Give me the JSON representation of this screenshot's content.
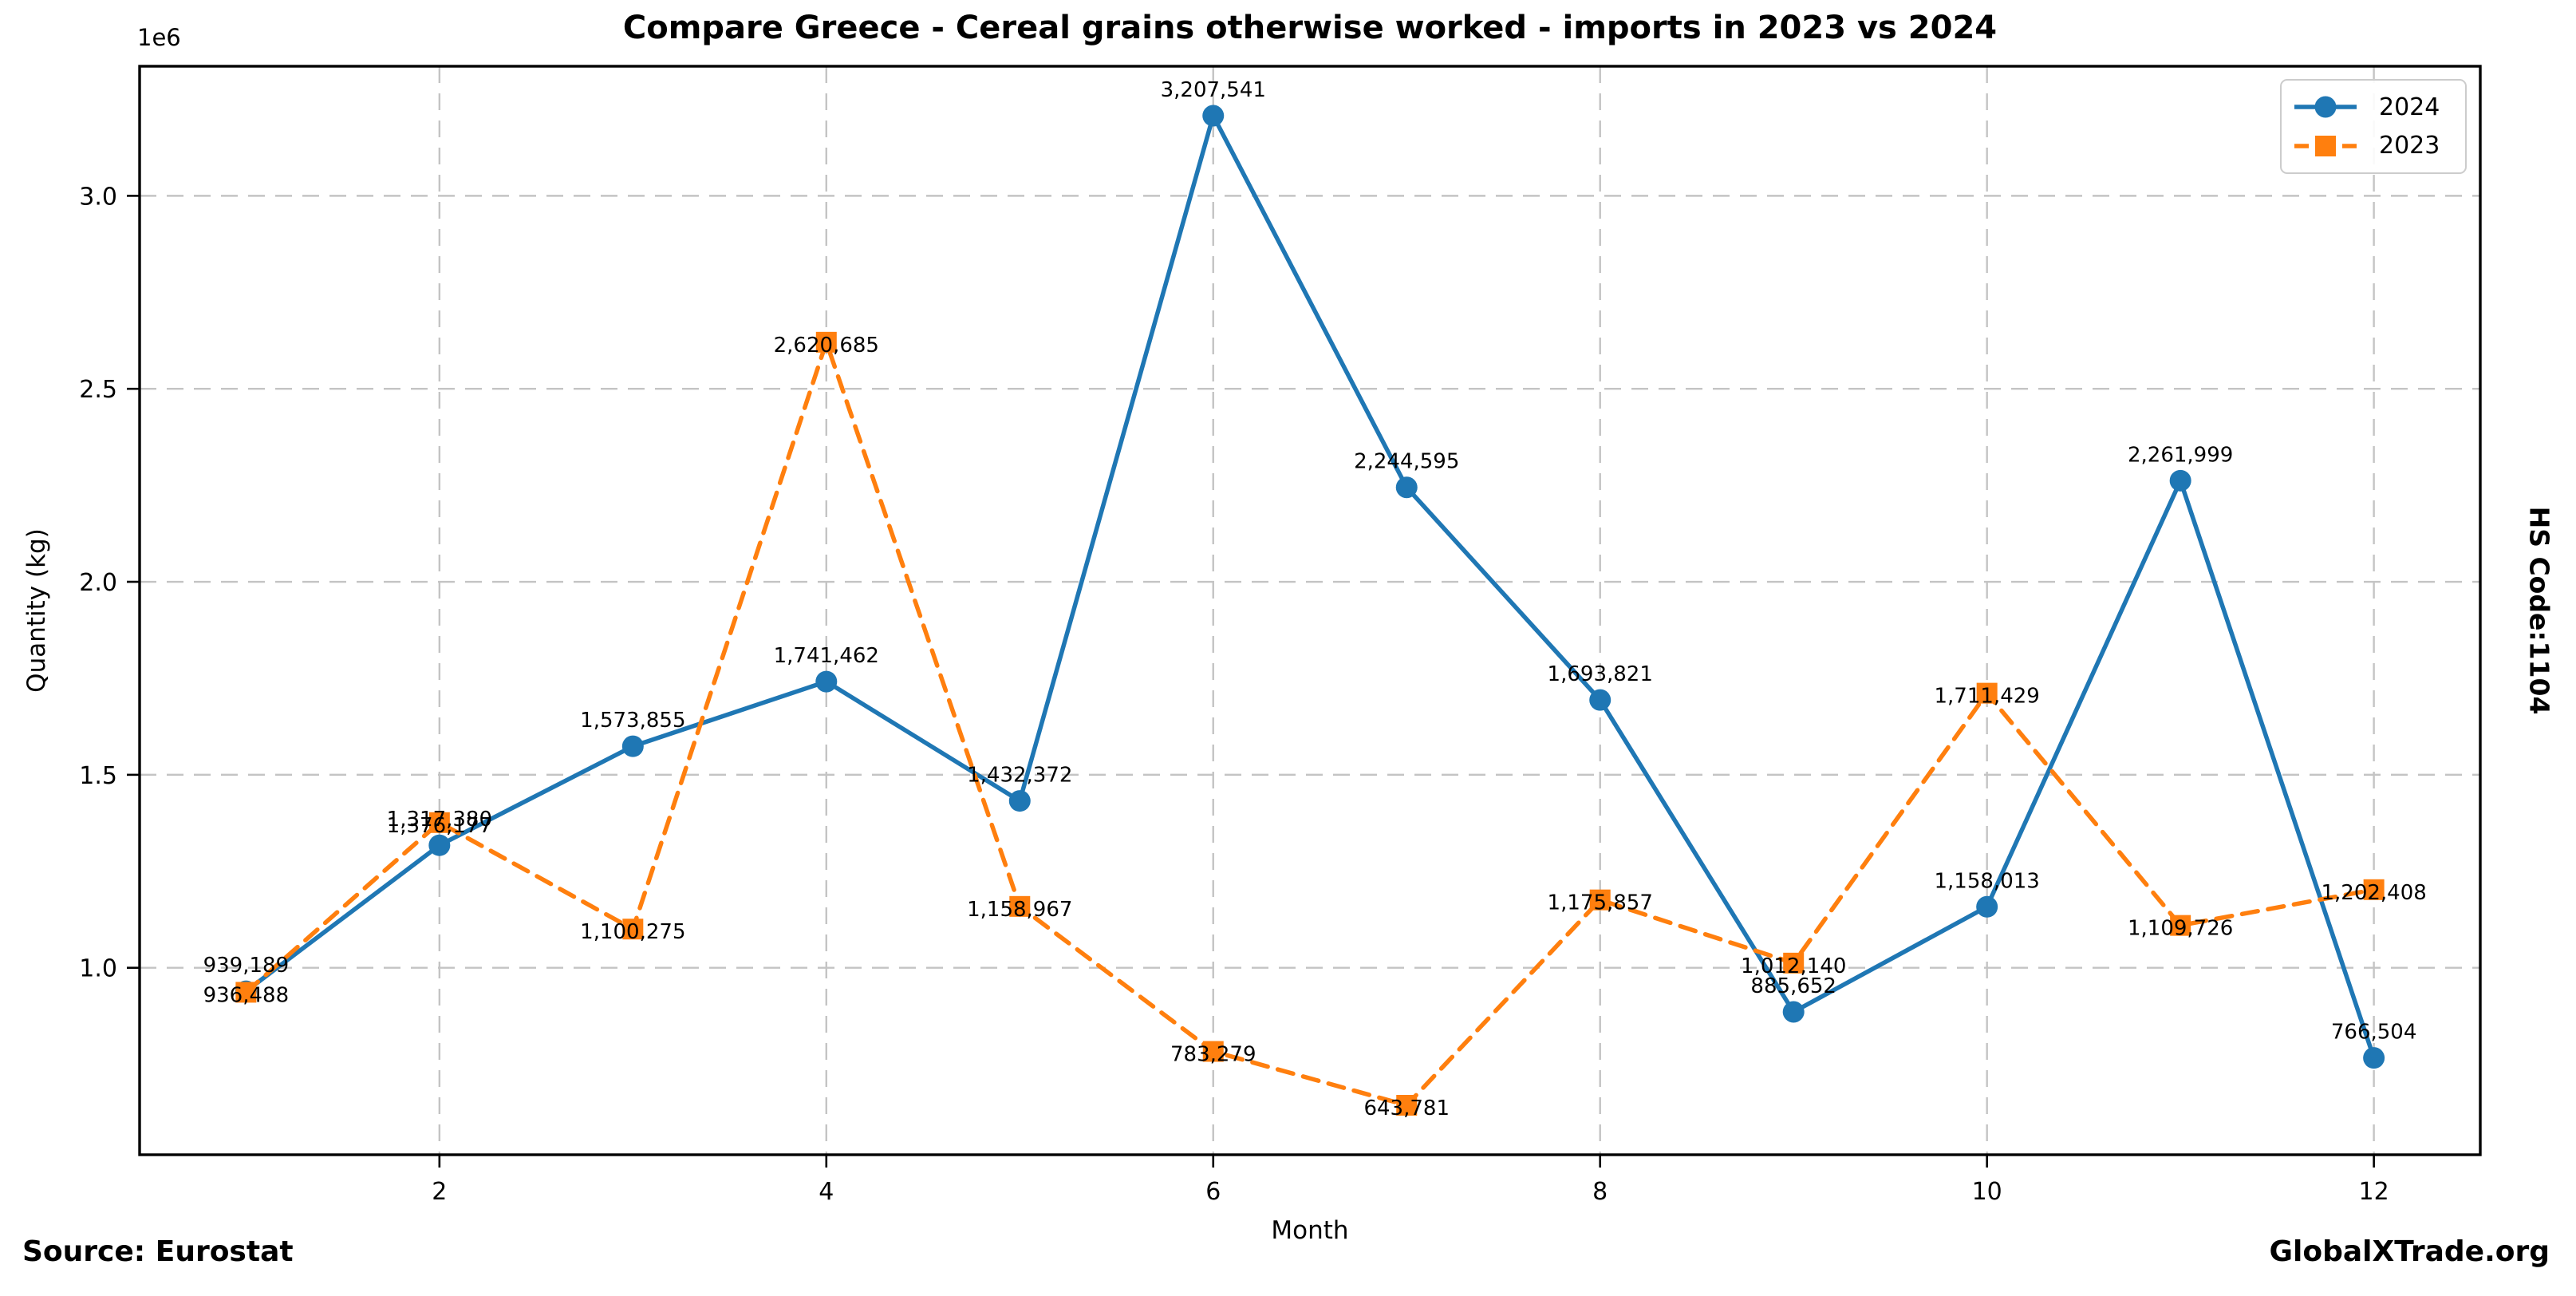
{
  "title": "Compare Greece - Cereal grains otherwise worked - imports in 2023 vs 2024",
  "footer": {
    "source": "Source: Eurostat",
    "brand": "GlobalXTrade.org"
  },
  "right_side_label": "HS Code:1104",
  "legend": {
    "position": "upper right",
    "items": [
      {
        "label": "2024",
        "color": "#1f77b4",
        "marker": "circle",
        "line_style": "solid"
      },
      {
        "label": "2023",
        "color": "#ff7f0e",
        "marker": "square",
        "line_style": "dashed"
      }
    ]
  },
  "chart_data": {
    "type": "line",
    "title": "Compare Greece - Cereal grains otherwise worked - imports in 2023 vs 2024",
    "xlabel": "Month",
    "ylabel": "Quantity (kg)",
    "y_offset_text": "1e6",
    "x": [
      1,
      2,
      3,
      4,
      5,
      6,
      7,
      8,
      9,
      10,
      11,
      12
    ],
    "xticks": [
      2,
      4,
      6,
      8,
      10,
      12
    ],
    "yticks": [
      1000000,
      1500000,
      2000000,
      2500000,
      3000000
    ],
    "ytick_labels": [
      "1.0",
      "1.5",
      "2.0",
      "2.5",
      "3.0"
    ],
    "xlim": [
      0.45,
      12.55
    ],
    "ylim": [
      515593,
      3335729
    ],
    "grid": true,
    "legend_position": "upper right",
    "series": [
      {
        "name": "2024",
        "color": "#1f77b4",
        "line_style": "solid",
        "marker": "circle",
        "label_placement": "above",
        "values": [
          939189,
          1317380,
          1573855,
          1741462,
          1432372,
          3207541,
          2244595,
          1693821,
          885652,
          1158013,
          2261999,
          766504
        ]
      },
      {
        "name": "2023",
        "color": "#ff7f0e",
        "line_style": "dashed",
        "marker": "square",
        "label_placement": "center",
        "values": [
          936488,
          1376177,
          1100275,
          2620685,
          1158967,
          783279,
          643781,
          1175857,
          1012140,
          1711429,
          1109726,
          1202408
        ]
      }
    ]
  }
}
